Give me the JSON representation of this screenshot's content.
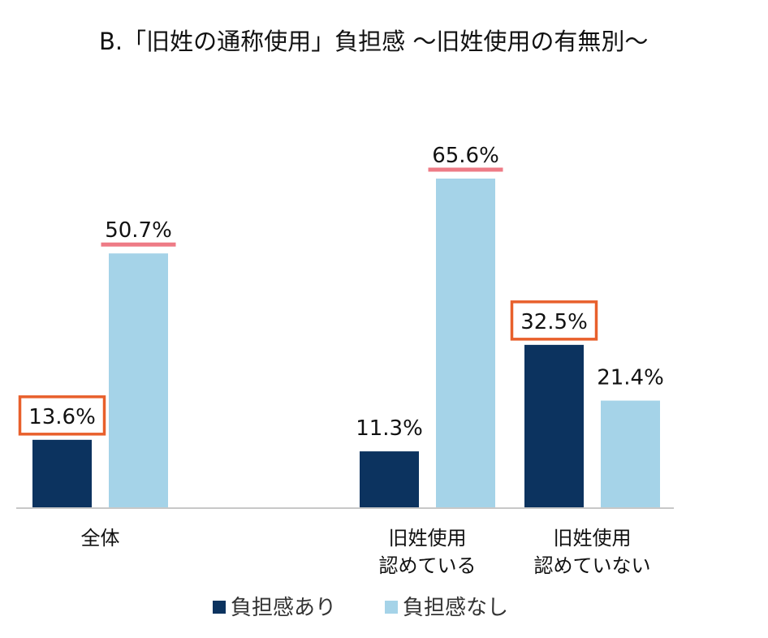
{
  "chart_data": {
    "type": "bar",
    "title": "B.「旧姓の通称使用」負担感 ～旧姓使用の有無別～",
    "categories": [
      [
        "全体"
      ],
      [
        "旧姓使用",
        "認めている"
      ],
      [
        "旧姓使用",
        "認めていない"
      ]
    ],
    "series": [
      {
        "name": "負担感あり",
        "color": "#0c335f",
        "values": [
          13.6,
          11.3,
          32.5
        ]
      },
      {
        "name": "負担感なし",
        "color": "#a5d3e8",
        "values": [
          50.7,
          65.6,
          21.4
        ]
      }
    ],
    "value_labels": [
      [
        "13.6%",
        "11.3%",
        "32.5%"
      ],
      [
        "50.7%",
        "65.6%",
        "21.4%"
      ]
    ],
    "highlight": {
      "boxed": [
        [
          0,
          0
        ],
        [
          0,
          2
        ]
      ],
      "underlined": [
        [
          1,
          0
        ],
        [
          1,
          1
        ]
      ],
      "box_color": "#e8602c",
      "underline_color": "#ee7b86"
    },
    "ylim": [
      0,
      75
    ],
    "grid": false,
    "legend_position": "bottom"
  }
}
